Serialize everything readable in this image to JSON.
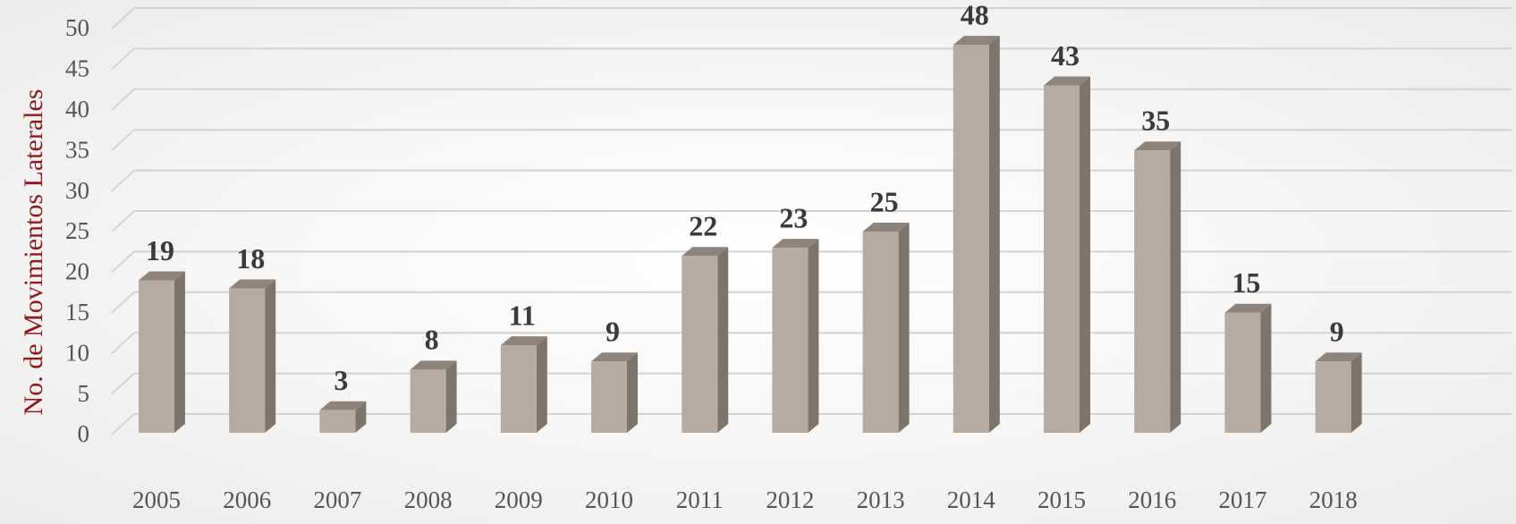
{
  "chart_data": {
    "type": "bar",
    "y_label": "No. de Movimientos Laterales",
    "categories": [
      "2005",
      "2006",
      "2007",
      "2008",
      "2009",
      "2010",
      "2011",
      "2012",
      "2013",
      "2014",
      "2015",
      "2016",
      "2017",
      "2018"
    ],
    "values": [
      19,
      18,
      3,
      8,
      11,
      9,
      22,
      23,
      25,
      48,
      43,
      35,
      15,
      9
    ],
    "color": "#b5aba1",
    "ylim": [
      0,
      50
    ],
    "yticks": [
      0,
      5,
      10,
      15,
      20,
      25,
      30,
      35,
      40,
      45,
      50
    ],
    "grid": true
  }
}
